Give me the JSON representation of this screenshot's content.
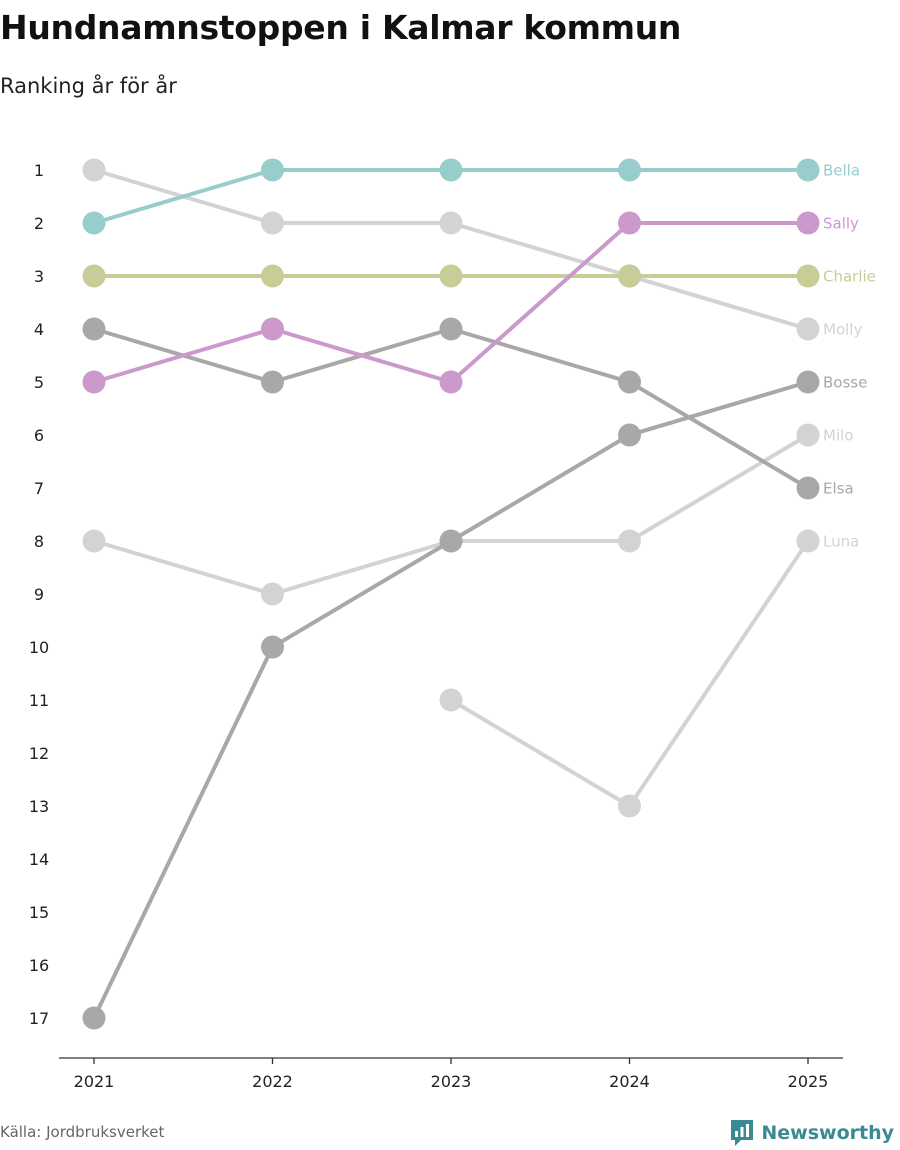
{
  "title": "Hundnamnstoppen i Kalmar kommun",
  "subtitle": "Ranking år för år",
  "source": "Källa: Jordbruksverket",
  "brand": {
    "name": "Newsworthy",
    "logo_icon": "bar-chart-bubble-icon",
    "color": "#3a8a93"
  },
  "chart_data": {
    "type": "line",
    "title": "Hundnamnstoppen i Kalmar kommun",
    "subtitle": "Ranking år för år",
    "xlabel": "",
    "ylabel": "",
    "x": [
      "2021",
      "2022",
      "2023",
      "2024",
      "2025"
    ],
    "y_ticks": [
      1,
      2,
      3,
      4,
      5,
      6,
      7,
      8,
      9,
      10,
      11,
      12,
      13,
      14,
      15,
      16,
      17
    ],
    "ylim": [
      1,
      17
    ],
    "y_inverted": true,
    "grid": false,
    "legend": "end-labels-right",
    "series": [
      {
        "name": "Molly",
        "color": "#d3d3d3",
        "values": [
          1,
          2,
          2,
          3,
          4
        ]
      },
      {
        "name": "Luna",
        "color": "#d3d3d3",
        "values": [
          null,
          null,
          11,
          13,
          8
        ]
      },
      {
        "name": "Milo",
        "color": "#d3d3d3",
        "values": [
          8,
          9,
          8,
          8,
          6
        ]
      },
      {
        "name": "Elsa",
        "color": "#a8a8a8",
        "values": [
          4,
          5,
          4,
          5,
          7
        ]
      },
      {
        "name": "Bosse",
        "color": "#a8a8a8",
        "values": [
          17,
          10,
          8,
          6,
          5
        ]
      },
      {
        "name": "Charlie",
        "color": "#c8cc96",
        "values": [
          3,
          3,
          3,
          3,
          3
        ]
      },
      {
        "name": "Sally",
        "color": "#cb99cc",
        "values": [
          5,
          4,
          5,
          2,
          2
        ]
      },
      {
        "name": "Bella",
        "color": "#97cdcb",
        "values": [
          2,
          1,
          1,
          1,
          1
        ]
      }
    ]
  }
}
